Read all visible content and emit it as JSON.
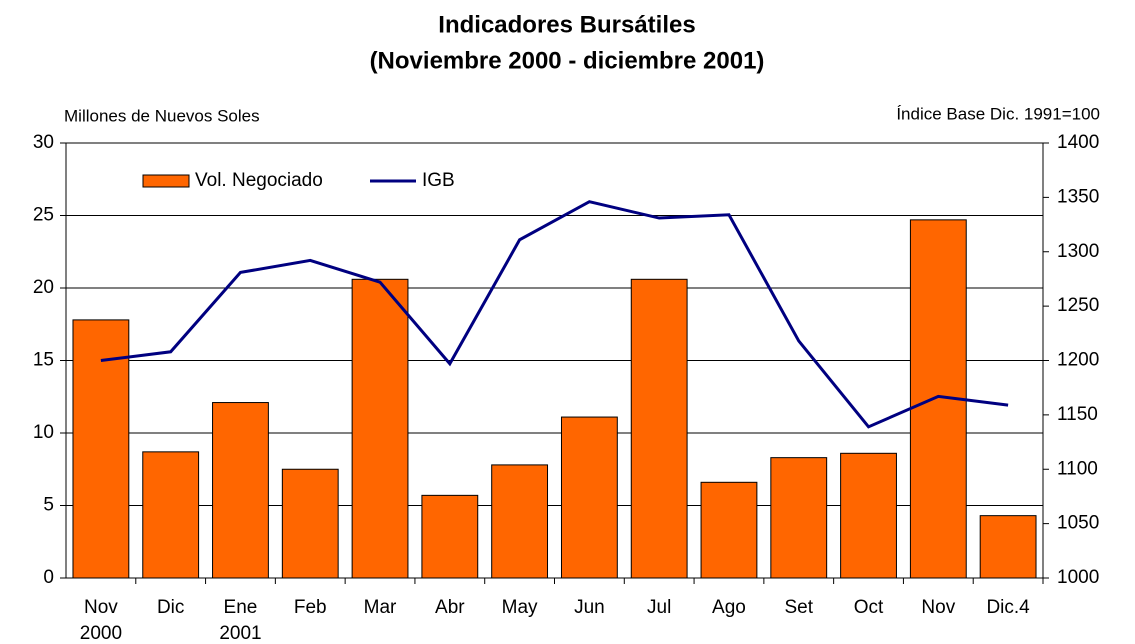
{
  "chart_data": {
    "type": "bar_line",
    "title": "Indicadores Bursátiles",
    "subtitle": "(Noviembre 2000 - diciembre 2001)",
    "y_label": "Millones de Nuevos Soles",
    "y2_label": "Índice Base Dic. 1991=100",
    "categories": [
      [
        "Nov",
        "2000"
      ],
      [
        "Dic"
      ],
      [
        "Ene",
        "2001"
      ],
      [
        "Feb"
      ],
      [
        "Mar"
      ],
      [
        "Abr"
      ],
      [
        "May"
      ],
      [
        "Jun"
      ],
      [
        "Jul"
      ],
      [
        "Ago"
      ],
      [
        "Set"
      ],
      [
        "Oct"
      ],
      [
        "Nov"
      ],
      [
        "Dic.4"
      ]
    ],
    "series": [
      {
        "name": "Vol. Negociado",
        "type": "bar",
        "color": "#ff6600",
        "values": [
          17.8,
          8.7,
          12.1,
          7.5,
          20.6,
          5.7,
          7.8,
          11.1,
          20.6,
          6.6,
          8.3,
          8.6,
          24.7,
          4.3
        ]
      },
      {
        "name": "IGB",
        "type": "line",
        "axis": "y2",
        "color": "#000080",
        "values": [
          1200,
          1208,
          1281,
          1292,
          1272,
          1197,
          1311,
          1346,
          1331,
          1334,
          1218,
          1139,
          1167,
          1159
        ]
      }
    ],
    "ylim": [
      0,
      30
    ],
    "yticks": [
      0,
      5,
      10,
      15,
      20,
      25,
      30
    ],
    "y2lim": [
      1000,
      1400
    ],
    "y2ticks": [
      1000,
      1050,
      1100,
      1150,
      1200,
      1250,
      1300,
      1350,
      1400
    ],
    "grid": true,
    "legend": "top-left"
  }
}
